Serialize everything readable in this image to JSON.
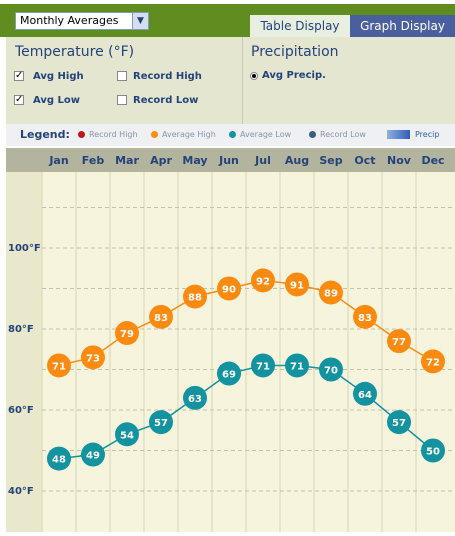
{
  "controls": {
    "view_select": "Monthly Averages",
    "tabs": [
      "Table Display",
      "Graph Display"
    ]
  },
  "temperature": {
    "title": "Temperature  (°F)",
    "options": [
      {
        "label": "Avg High",
        "checked": true
      },
      {
        "label": "Record High",
        "checked": false
      },
      {
        "label": "Avg Low",
        "checked": true
      },
      {
        "label": "Record Low",
        "checked": false
      }
    ]
  },
  "precipitation": {
    "title": "Precipitation",
    "option": "Avg Precip."
  },
  "legend": {
    "title": "Legend:",
    "items": [
      {
        "label": "Record High",
        "color": "#c01818"
      },
      {
        "label": "Average High",
        "color": "#ff8a10"
      },
      {
        "label": "Average Low",
        "color": "#13939f"
      },
      {
        "label": "Record Low",
        "color": "#3a5f7d"
      }
    ],
    "precip_label": "Precip"
  },
  "chart_data": {
    "type": "line",
    "categories": [
      "Jan",
      "Feb",
      "Mar",
      "Apr",
      "May",
      "Jun",
      "Jul",
      "Aug",
      "Sep",
      "Oct",
      "Nov",
      "Dec"
    ],
    "y_tick_labels": [
      "100°F",
      "80°F",
      "60°F",
      "40°F"
    ],
    "y_ticks": [
      100,
      80,
      60,
      40
    ],
    "ylim": [
      40,
      120
    ],
    "grid": true,
    "series": [
      {
        "name": "Average High",
        "color": "#ff8a10",
        "values": [
          71,
          73,
          79,
          83,
          88,
          90,
          92,
          91,
          89,
          83,
          77,
          72
        ]
      },
      {
        "name": "Average Low",
        "color": "#13939f",
        "values": [
          48,
          49,
          54,
          57,
          63,
          69,
          71,
          71,
          70,
          64,
          57,
          50
        ]
      }
    ]
  }
}
